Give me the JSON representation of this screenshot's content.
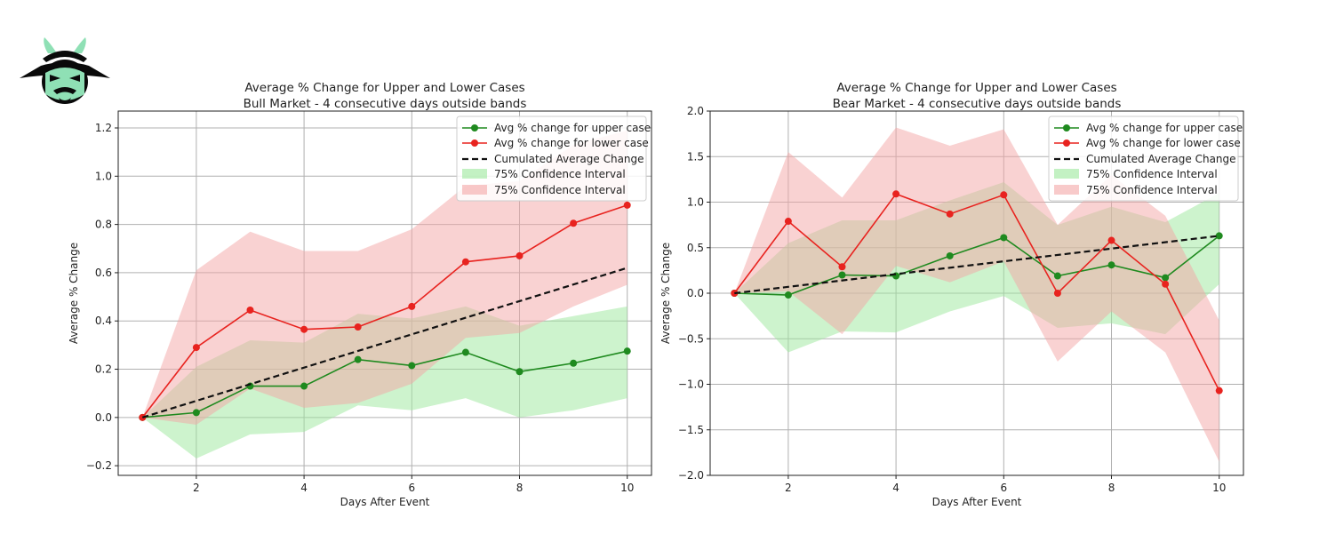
{
  "colors": {
    "upper": "#1f8a1f",
    "lower": "#e8231f",
    "cumulated": "#111111",
    "ci_upper": "#9be89b",
    "ci_lower": "#f4a6a6",
    "grid": "#b0b0b0",
    "logo_dark": "#0a0a0a",
    "logo_accent": "#8fe0b5"
  },
  "logo": {
    "icon": "samurai-helmet-logo"
  },
  "chart_data": [
    {
      "type": "line",
      "title": "Average % Change for Upper and Lower Cases",
      "subtitle": "Bull Market - 4 consecutive days outside bands",
      "xlabel": "Days After Event",
      "ylabel": "Average % Change",
      "xlim": [
        0.55,
        10.45
      ],
      "ylim": [
        -0.24,
        1.27
      ],
      "xticks": [
        2,
        4,
        6,
        8,
        10
      ],
      "yticks": [
        -0.2,
        0.0,
        0.2,
        0.4,
        0.6,
        0.8,
        1.0,
        1.2
      ],
      "ytick_labels": [
        "−0.2",
        "0.0",
        "0.2",
        "0.4",
        "0.6",
        "0.8",
        "1.0",
        "1.2"
      ],
      "grid": true,
      "legend_position": "top-right",
      "x": [
        1,
        2,
        3,
        4,
        5,
        6,
        7,
        8,
        9,
        10
      ],
      "series": [
        {
          "name": "Avg % change for upper case",
          "color": "#1f8a1f",
          "values": [
            0.0,
            0.02,
            0.13,
            0.13,
            0.24,
            0.215,
            0.27,
            0.19,
            0.225,
            0.275
          ]
        },
        {
          "name": "Avg % change for lower case",
          "color": "#e8231f",
          "values": [
            0.0,
            0.29,
            0.445,
            0.365,
            0.375,
            0.46,
            0.645,
            0.67,
            0.805,
            0.88
          ]
        },
        {
          "name": "Cumulated Average Change",
          "color": "#111111",
          "dashed": true,
          "values": [
            0.0,
            0.069,
            0.138,
            0.207,
            0.276,
            0.345,
            0.414,
            0.483,
            0.552,
            0.62
          ]
        }
      ],
      "bands": [
        {
          "name": "75% Confidence Interval",
          "color": "#9be89b",
          "lower": [
            0.0,
            -0.17,
            -0.07,
            -0.06,
            0.05,
            0.03,
            0.08,
            0.0,
            0.03,
            0.08
          ],
          "upper": [
            0.0,
            0.21,
            0.32,
            0.31,
            0.43,
            0.41,
            0.46,
            0.38,
            0.42,
            0.46
          ]
        },
        {
          "name": "75% Confidence Interval",
          "color": "#f4a6a6",
          "lower": [
            0.0,
            -0.03,
            0.12,
            0.04,
            0.06,
            0.14,
            0.33,
            0.35,
            0.46,
            0.55
          ],
          "upper": [
            0.0,
            0.61,
            0.77,
            0.69,
            0.69,
            0.78,
            0.96,
            0.98,
            1.13,
            1.19
          ]
        }
      ]
    },
    {
      "type": "line",
      "title": "Average % Change for Upper and Lower Cases",
      "subtitle": "Bear Market - 4 consecutive days outside bands",
      "xlabel": "Days After Event",
      "ylabel": "Average % Change",
      "xlim": [
        0.55,
        10.45
      ],
      "ylim": [
        -2.0,
        2.0
      ],
      "xticks": [
        2,
        4,
        6,
        8,
        10
      ],
      "yticks": [
        -2.0,
        -1.5,
        -1.0,
        -0.5,
        0.0,
        0.5,
        1.0,
        1.5,
        2.0
      ],
      "ytick_labels": [
        "−2.0",
        "−1.5",
        "−1.0",
        "−0.5",
        "0.0",
        "0.5",
        "1.0",
        "1.5",
        "2.0"
      ],
      "grid": true,
      "legend_position": "top-right",
      "x": [
        1,
        2,
        3,
        4,
        5,
        6,
        7,
        8,
        9,
        10
      ],
      "series": [
        {
          "name": "Avg % change for upper case",
          "color": "#1f8a1f",
          "values": [
            0.0,
            -0.02,
            0.2,
            0.19,
            0.41,
            0.61,
            0.19,
            0.31,
            0.17,
            0.63
          ]
        },
        {
          "name": "Avg % change for lower case",
          "color": "#e8231f",
          "values": [
            0.0,
            0.79,
            0.29,
            1.09,
            0.87,
            1.08,
            0.0,
            0.58,
            0.1,
            -1.07
          ]
        },
        {
          "name": "Cumulated Average Change",
          "color": "#111111",
          "dashed": true,
          "values": [
            0.0,
            0.07,
            0.14,
            0.21,
            0.28,
            0.35,
            0.42,
            0.49,
            0.56,
            0.63
          ]
        }
      ],
      "bands": [
        {
          "name": "75% Confidence Interval",
          "color": "#9be89b",
          "lower": [
            0.0,
            -0.65,
            -0.42,
            -0.43,
            -0.2,
            -0.03,
            -0.38,
            -0.33,
            -0.45,
            0.1
          ],
          "upper": [
            0.0,
            0.55,
            0.8,
            0.8,
            1.02,
            1.22,
            0.75,
            0.95,
            0.78,
            1.1
          ]
        },
        {
          "name": "75% Confidence Interval",
          "color": "#f4a6a6",
          "lower": [
            0.0,
            0.02,
            -0.45,
            0.3,
            0.12,
            0.35,
            -0.75,
            -0.2,
            -0.65,
            -1.85
          ],
          "upper": [
            0.0,
            1.55,
            1.05,
            1.82,
            1.62,
            1.8,
            0.75,
            1.3,
            0.85,
            -0.3
          ]
        }
      ]
    }
  ]
}
